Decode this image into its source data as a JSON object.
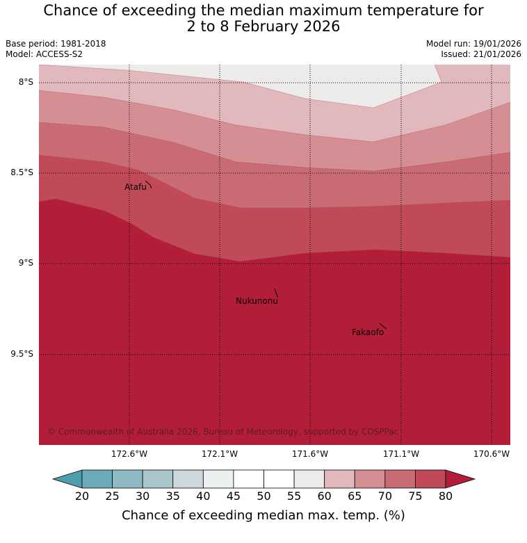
{
  "title": {
    "line1": "Chance of exceeding the median maximum temperature for",
    "line2": "2 to 8 February 2026"
  },
  "meta": {
    "base_period": "Base period: 1981-2018",
    "model": "Model: ACCESS-S2",
    "model_run": "Model run: 19/01/2026",
    "issued": "Issued: 21/01/2026"
  },
  "map": {
    "lat_labels": [
      "8°S",
      "8.5°S",
      "9°S",
      "9.5°S"
    ],
    "lon_labels": [
      "172.6°W",
      "172.1°W",
      "171.6°W",
      "171.1°W",
      "170.6°W"
    ],
    "places": [
      "Atafu",
      "Nukunonu",
      "Fakaofo"
    ],
    "copyright": "© Commonwealth of Australia 2026, Bureau of Meteorology, supported by COSPPac",
    "band_colors": [
      "#eeeceb",
      "#e1b8bc",
      "#d68e95",
      "#c96b74",
      "#c04a58",
      "#b21e3a"
    ]
  },
  "colorbar": {
    "ticks": [
      "20",
      "25",
      "30",
      "35",
      "40",
      "45",
      "50",
      "55",
      "60",
      "65",
      "70",
      "75",
      "80"
    ],
    "colors": [
      "#6aabb7",
      "#8ebac4",
      "#a9c7cb",
      "#ccd8db",
      "#ebeff0",
      "#ffffff",
      "#ffffff",
      "#eeeceb",
      "#e1b8bc",
      "#d68e95",
      "#c96b74",
      "#c04a58"
    ],
    "low_color": "#4d9dac",
    "high_color": "#b21e3a",
    "label": "Chance of exceeding median max. temp. (%)"
  }
}
